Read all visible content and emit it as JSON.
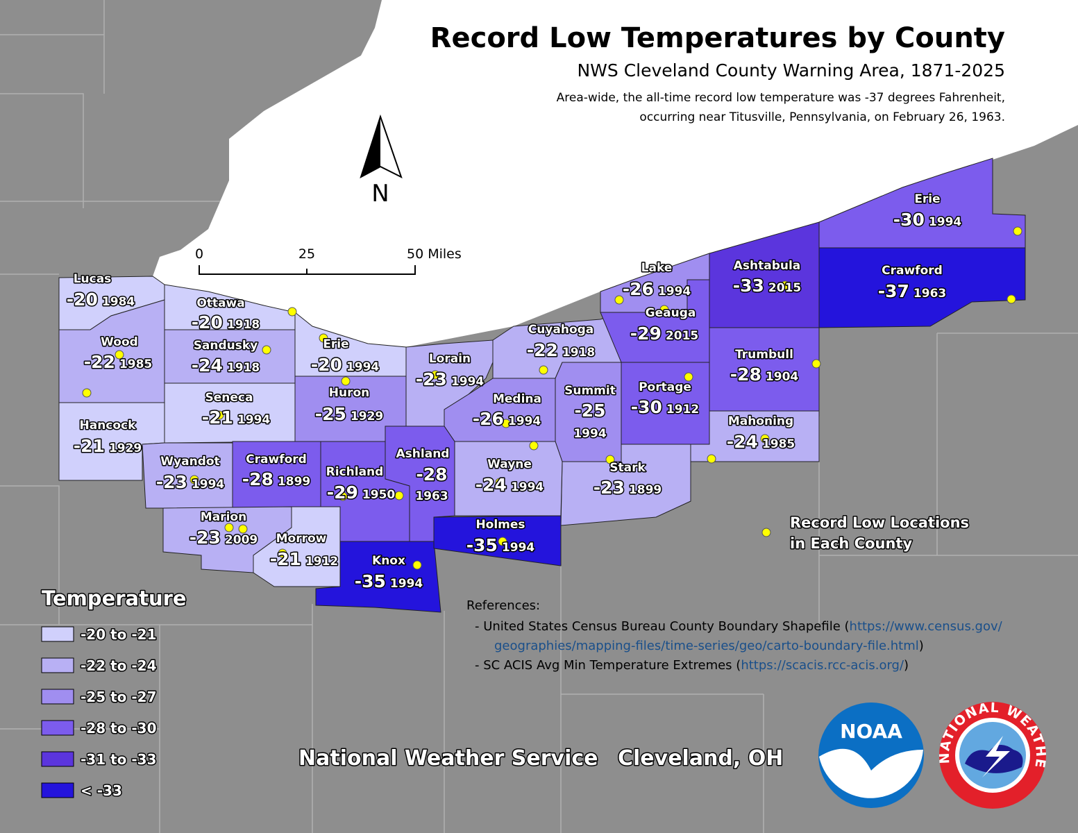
{
  "header": {
    "title": "Record Low Temperatures by County",
    "subtitle": "NWS Cleveland County Warning Area, 1871-2025",
    "note": [
      "Area-wide, the all-time record low temperature was -37 degrees Fahrenheit,",
      "occurring near Titusville, Pennsylvania, on February 26, 1963."
    ]
  },
  "north": "N",
  "scale": [
    "0",
    "25",
    "50 Miles"
  ],
  "counties": [
    {
      "name": "Lucas",
      "temp": -20,
      "year": 1984,
      "color": "#d0d0fc"
    },
    {
      "name": "Ottawa",
      "temp": -20,
      "year": 1918,
      "color": "#d0d0fc"
    },
    {
      "name": "Wood",
      "temp": -22,
      "year": 1985,
      "color": "#b8b0f4"
    },
    {
      "name": "Sandusky",
      "temp": -24,
      "year": 1918,
      "color": "#b8b0f4"
    },
    {
      "name": "Erie",
      "temp": -20,
      "year": 1994,
      "color": "#d0d0fc"
    },
    {
      "name": "Hancock",
      "temp": -21,
      "year": 1929,
      "color": "#d0d0fc"
    },
    {
      "name": "Seneca",
      "temp": -21,
      "year": 1994,
      "color": "#d0d0fc"
    },
    {
      "name": "Huron",
      "temp": -25,
      "year": 1929,
      "color": "#a08ef0"
    },
    {
      "name": "Lorain",
      "temp": -23,
      "year": 1994,
      "color": "#b8b0f4"
    },
    {
      "name": "Cuyahoga",
      "temp": -22,
      "year": 1918,
      "color": "#b8b0f4"
    },
    {
      "name": "Medina",
      "temp": -26,
      "year": 1994,
      "color": "#a08ef0"
    },
    {
      "name": "Summit",
      "temp": -25,
      "year": 1994,
      "color": "#a08ef0"
    },
    {
      "name": "Portage",
      "temp": -30,
      "year": 1912,
      "color": "#7c5ced"
    },
    {
      "name": "Lake",
      "temp": -26,
      "year": 1994,
      "color": "#a08ef0"
    },
    {
      "name": "Geauga",
      "temp": -29,
      "year": 2015,
      "color": "#7c5ced"
    },
    {
      "name": "Ashtabula",
      "temp": -33,
      "year": 2015,
      "color": "#5b35dd"
    },
    {
      "name": "Erie",
      "temp": -30,
      "year": 1994,
      "color": "#7c5ced"
    },
    {
      "name": "Crawford",
      "temp": -37,
      "year": 1963,
      "color": "#2414dc"
    },
    {
      "name": "Trumbull",
      "temp": -28,
      "year": 1904,
      "color": "#7c5ced"
    },
    {
      "name": "Mahoning",
      "temp": -24,
      "year": 1985,
      "color": "#b8b0f4"
    },
    {
      "name": "Stark",
      "temp": -23,
      "year": 1899,
      "color": "#b8b0f4"
    },
    {
      "name": "Wayne",
      "temp": -24,
      "year": 1994,
      "color": "#b8b0f4"
    },
    {
      "name": "Ashland",
      "temp": -28,
      "year": 1963,
      "color": "#7c5ced"
    },
    {
      "name": "Richland",
      "temp": -29,
      "year": 1950,
      "color": "#7c5ced"
    },
    {
      "name": "Crawford",
      "temp": -28,
      "year": 1899,
      "color": "#7c5ced"
    },
    {
      "name": "Wyandot",
      "temp": -23,
      "year": 1994,
      "color": "#b8b0f4"
    },
    {
      "name": "Marion",
      "temp": -23,
      "year": 2009,
      "color": "#b8b0f4"
    },
    {
      "name": "Morrow",
      "temp": -21,
      "year": 1912,
      "color": "#d0d0fc"
    },
    {
      "name": "Knox",
      "temp": -35,
      "year": 1994,
      "color": "#2414dc"
    },
    {
      "name": "Holmes",
      "temp": -35,
      "year": 1994,
      "color": "#2414dc"
    }
  ],
  "legend": {
    "title": "Temperature",
    "items": [
      {
        "label": "-20 to -21",
        "color": "#d0d0fc"
      },
      {
        "label": "-22 to -24",
        "color": "#b8b0f4"
      },
      {
        "label": "-25 to -27",
        "color": "#a08ef0"
      },
      {
        "label": "-28 to -30",
        "color": "#7c5ced"
      },
      {
        "label": "-31 to -33",
        "color": "#5b35dd"
      },
      {
        "label": "< -33",
        "color": "#2414dc"
      }
    ]
  },
  "points_label": [
    "Record Low Locations",
    "in Each County"
  ],
  "references": {
    "heading": "References:",
    "lines": [
      {
        "pre": "- United States Census Bureau County Boundary Shapefile (",
        "link": "https://www.census.gov/",
        "post": ""
      },
      {
        "pre": "",
        "link": "geographies/mapping-files/time-series/geo/carto-boundary-file.html",
        "post": ")"
      },
      {
        "pre": "- SC ACIS Avg Min Temperature Extremes (",
        "link": "https://scacis.rcc-acis.org/",
        "post": ")"
      }
    ]
  },
  "footer": {
    "office": "National Weather Service",
    "city": "Cleveland, OH"
  },
  "logos": {
    "noaa": "NOAA",
    "nws": "NATIONAL WEATHER SERVICE"
  }
}
